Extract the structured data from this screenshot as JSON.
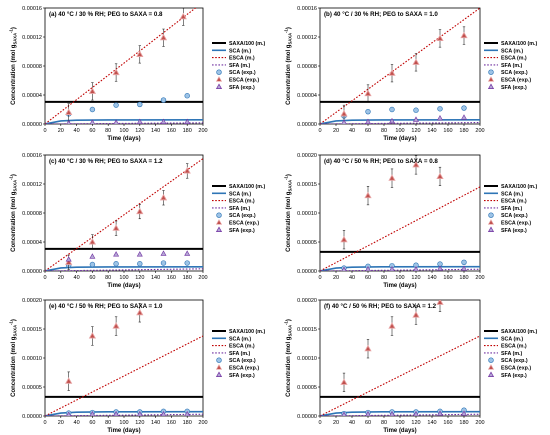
{
  "x_ticks": [
    "0",
    "20",
    "40",
    "60",
    "80",
    "100",
    "120",
    "140",
    "160",
    "180",
    "200"
  ],
  "x_label": "Time (days)",
  "y_label": "Concentration (mol g",
  "y_label_sub": "SAXA",
  "y_label_sup": "-1",
  "y_label_end": ")",
  "legend": {
    "saxa_m": "SAXA/100 (m.)",
    "sca_m": "SCA (m.)",
    "esca_m": "ESCA (m.)",
    "sfa_m": "SFA (m.)",
    "sca_e": "SCA (exp.)",
    "esca_e": "ESCA (exp.)",
    "sfa_e": "SFA (exp.)"
  },
  "colors": {
    "saxa": "#000000",
    "sca": "#2e75b6",
    "esca": "#c00000",
    "sfa": "#7030a0",
    "sca_fill": "#9dc3e6",
    "esca_fill": "#c0504d",
    "sfa_fill": "#b4a7d6",
    "marker_outline": "#e6a0a0"
  },
  "chart_data": [
    {
      "type": "scatter",
      "title": "(a)  40 °C / 30 % RH; PEG to SAXA = 0.8",
      "xlim": [
        0,
        200
      ],
      "ylim": [
        0,
        0.00016
      ],
      "yticks": [
        "0.00000",
        "0.00004",
        "0.00008",
        "0.00012",
        "0.00016"
      ],
      "series": [
        {
          "name": "SAXA/100 (m.)",
          "style": "line",
          "values": [
            [
              0,
              3.05e-05
            ],
            [
              200,
              3.05e-05
            ]
          ]
        },
        {
          "name": "SCA (m.)",
          "style": "line",
          "values": [
            [
              0,
              0
            ],
            [
              20,
              4.2e-06
            ],
            [
              40,
              5.2e-06
            ],
            [
              80,
              5.6e-06
            ],
            [
              200,
              5.8e-06
            ]
          ]
        },
        {
          "name": "ESCA (m.)",
          "style": "dotted",
          "values": [
            [
              0,
              0
            ],
            [
              200,
              0.000168
            ]
          ]
        },
        {
          "name": "SFA (m.)",
          "style": "dotted",
          "values": [
            [
              0,
              0
            ],
            [
              200,
              1.6e-06
            ]
          ]
        },
        {
          "name": "SCA (exp.)",
          "style": "circle",
          "values": [
            [
              30,
              1.4e-05
            ],
            [
              60,
              2e-05
            ],
            [
              90,
              2.6e-05
            ],
            [
              120,
              2.7e-05
            ],
            [
              150,
              3.3e-05
            ],
            [
              180,
              3.9e-05
            ]
          ]
        },
        {
          "name": "ESCA (exp.)",
          "style": "triangle",
          "values": [
            [
              30,
              1.6e-05
            ],
            [
              60,
              4.5e-05
            ],
            [
              90,
              7.1e-05
            ],
            [
              120,
              9.6e-05
            ],
            [
              150,
              0.000119
            ],
            [
              175,
              0.000148
            ]
          ],
          "err": 1.2e-05
        },
        {
          "name": "SFA (exp.)",
          "style": "triangle",
          "values": [
            [
              30,
              1e-06
            ],
            [
              60,
              2e-06
            ],
            [
              90,
              2e-06
            ],
            [
              120,
              3e-06
            ],
            [
              150,
              3e-06
            ],
            [
              180,
              3e-06
            ]
          ]
        }
      ]
    },
    {
      "type": "scatter",
      "title": "(b)  40 °C / 30 % RH; PEG to SAXA = 1.0",
      "xlim": [
        0,
        200
      ],
      "ylim": [
        0,
        0.00016
      ],
      "yticks": [
        "0.00000",
        "0.00004",
        "0.00008",
        "0.00012",
        "0.00016"
      ],
      "series": [
        {
          "name": "SAXA/100 (m.)",
          "style": "line",
          "values": [
            [
              0,
              3.05e-05
            ],
            [
              200,
              3.05e-05
            ]
          ]
        },
        {
          "name": "SCA (m.)",
          "style": "line",
          "values": [
            [
              0,
              0
            ],
            [
              20,
              4.2e-06
            ],
            [
              40,
              5.2e-06
            ],
            [
              80,
              5.6e-06
            ],
            [
              200,
              5.8e-06
            ]
          ]
        },
        {
          "name": "ESCA (m.)",
          "style": "dotted",
          "values": [
            [
              0,
              0
            ],
            [
              200,
              0.00016
            ]
          ]
        },
        {
          "name": "SFA (m.)",
          "style": "dotted",
          "values": [
            [
              0,
              0
            ],
            [
              200,
              2e-06
            ]
          ]
        },
        {
          "name": "SCA (exp.)",
          "style": "circle",
          "values": [
            [
              30,
              1.1e-05
            ],
            [
              60,
              1.7e-05
            ],
            [
              90,
              2e-05
            ],
            [
              120,
              1.9e-05
            ],
            [
              150,
              2.1e-05
            ],
            [
              180,
              2.2e-05
            ]
          ]
        },
        {
          "name": "ESCA (exp.)",
          "style": "triangle",
          "values": [
            [
              30,
              1.4e-05
            ],
            [
              60,
              4.2e-05
            ],
            [
              90,
              7e-05
            ],
            [
              120,
              8.5e-05
            ],
            [
              150,
              0.000118
            ],
            [
              180,
              0.000122
            ]
          ],
          "err": 1.2e-05
        },
        {
          "name": "SFA (exp.)",
          "style": "triangle",
          "values": [
            [
              30,
              2e-06
            ],
            [
              60,
              3e-06
            ],
            [
              90,
              4e-06
            ],
            [
              120,
              6e-06
            ],
            [
              150,
              8e-06
            ],
            [
              180,
              9e-06
            ]
          ]
        }
      ]
    },
    {
      "type": "scatter",
      "title": "(c)  40 °C / 30 % RH; PEG to SAXA = 1.2",
      "xlim": [
        0,
        200
      ],
      "ylim": [
        0,
        0.00016
      ],
      "yticks": [
        "0.00000",
        "0.00004",
        "0.00008",
        "0.00012",
        "0.00016"
      ],
      "series": [
        {
          "name": "SAXA/100 (m.)",
          "style": "line",
          "values": [
            [
              0,
              3.05e-05
            ],
            [
              200,
              3.05e-05
            ]
          ]
        },
        {
          "name": "SCA (m.)",
          "style": "line",
          "values": [
            [
              0,
              0
            ],
            [
              20,
              4.2e-06
            ],
            [
              40,
              5.2e-06
            ],
            [
              80,
              5.6e-06
            ],
            [
              200,
              5.8e-06
            ]
          ]
        },
        {
          "name": "ESCA (m.)",
          "style": "dotted",
          "values": [
            [
              0,
              0
            ],
            [
              200,
              0.000155
            ]
          ]
        },
        {
          "name": "SFA (m.)",
          "style": "dotted",
          "values": [
            [
              0,
              0
            ],
            [
              200,
              3e-06
            ]
          ]
        },
        {
          "name": "SCA (exp.)",
          "style": "circle",
          "values": [
            [
              30,
              8e-06
            ],
            [
              60,
              9e-06
            ],
            [
              90,
              1e-05
            ],
            [
              120,
              1e-05
            ],
            [
              150,
              1.1e-05
            ],
            [
              180,
              1.1e-05
            ]
          ]
        },
        {
          "name": "ESCA (exp.)",
          "style": "triangle",
          "values": [
            [
              30,
              1.2e-05
            ],
            [
              60,
              4e-05
            ],
            [
              90,
              5.9e-05
            ],
            [
              120,
              8.2e-05
            ],
            [
              150,
              0.000101
            ],
            [
              180,
              0.000138
            ]
          ],
          "err": 1e-05
        },
        {
          "name": "SFA (exp.)",
          "style": "triangle",
          "values": [
            [
              30,
              1.6e-05
            ],
            [
              60,
              2e-05
            ],
            [
              90,
              2.3e-05
            ],
            [
              120,
              2.3e-05
            ],
            [
              150,
              2.4e-05
            ],
            [
              180,
              2.4e-05
            ]
          ]
        }
      ]
    },
    {
      "type": "scatter",
      "title": "(d)  40 °C / 50 % RH; PEG to SAXA = 0.8",
      "xlim": [
        0,
        200
      ],
      "ylim": [
        0,
        0.0002
      ],
      "yticks": [
        "0.00000",
        "0.00005",
        "0.00010",
        "0.00015",
        "0.00020"
      ],
      "series": [
        {
          "name": "SAXA/100 (m.)",
          "style": "line",
          "values": [
            [
              0,
              3.3e-05
            ],
            [
              200,
              3.3e-05
            ]
          ]
        },
        {
          "name": "SCA (m.)",
          "style": "line",
          "values": [
            [
              0,
              0
            ],
            [
              20,
              5e-06
            ],
            [
              40,
              6.5e-06
            ],
            [
              80,
              7.2e-06
            ],
            [
              200,
              7.5e-06
            ]
          ]
        },
        {
          "name": "ESCA (m.)",
          "style": "dotted",
          "values": [
            [
              0,
              0
            ],
            [
              200,
              0.000145
            ]
          ]
        },
        {
          "name": "SFA (m.)",
          "style": "dotted",
          "values": [
            [
              0,
              0
            ],
            [
              200,
              3e-06
            ]
          ]
        },
        {
          "name": "SCA (exp.)",
          "style": "circle",
          "values": [
            [
              30,
              5e-06
            ],
            [
              60,
              8e-06
            ],
            [
              90,
              9e-06
            ],
            [
              120,
              1e-05
            ],
            [
              150,
              1.2e-05
            ],
            [
              180,
              1.5e-05
            ]
          ]
        },
        {
          "name": "ESCA (exp.)",
          "style": "triangle",
          "values": [
            [
              30,
              5.4e-05
            ],
            [
              60,
              0.00013
            ],
            [
              90,
              0.00016
            ],
            [
              120,
              0.000183
            ],
            [
              150,
              0.000163
            ]
          ],
          "err": 1.6e-05
        },
        {
          "name": "SFA (exp.)",
          "style": "triangle",
          "values": [
            [
              30,
              2e-06
            ],
            [
              60,
              3e-06
            ],
            [
              90,
              3e-06
            ],
            [
              120,
              3e-06
            ],
            [
              150,
              4e-06
            ],
            [
              180,
              4e-06
            ]
          ]
        }
      ]
    },
    {
      "type": "scatter",
      "title": "(e)  40 °C / 50 % RH; PEG to SAXA = 1.0",
      "xlim": [
        0,
        200
      ],
      "ylim": [
        0,
        0.0002
      ],
      "yticks": [
        "0.00000",
        "0.00005",
        "0.00010",
        "0.00015",
        "0.00020"
      ],
      "series": [
        {
          "name": "SAXA/100 (m.)",
          "style": "line",
          "values": [
            [
              0,
              3.3e-05
            ],
            [
              200,
              3.3e-05
            ]
          ]
        },
        {
          "name": "SCA (m.)",
          "style": "line",
          "values": [
            [
              0,
              0
            ],
            [
              20,
              5e-06
            ],
            [
              40,
              6.5e-06
            ],
            [
              80,
              7.2e-06
            ],
            [
              200,
              7.5e-06
            ]
          ]
        },
        {
          "name": "ESCA (m.)",
          "style": "dotted",
          "values": [
            [
              0,
              0
            ],
            [
              200,
              0.000138
            ]
          ]
        },
        {
          "name": "SFA (m.)",
          "style": "dotted",
          "values": [
            [
              0,
              0
            ],
            [
              200,
              3e-06
            ]
          ]
        },
        {
          "name": "SCA (exp.)",
          "style": "circle",
          "values": [
            [
              30,
              5e-06
            ],
            [
              60,
              6e-06
            ],
            [
              90,
              7e-06
            ],
            [
              120,
              7e-06
            ],
            [
              150,
              8e-06
            ],
            [
              180,
              8e-06
            ]
          ]
        },
        {
          "name": "ESCA (exp.)",
          "style": "triangle",
          "values": [
            [
              30,
              6e-05
            ],
            [
              60,
              0.000138
            ],
            [
              90,
              0.000155
            ],
            [
              120,
              0.000178
            ]
          ],
          "err": 1.6e-05
        },
        {
          "name": "SFA (exp.)",
          "style": "triangle",
          "values": [
            [
              30,
              2e-06
            ],
            [
              60,
              3e-06
            ],
            [
              90,
              3e-06
            ],
            [
              120,
              3e-06
            ],
            [
              150,
              3e-06
            ],
            [
              180,
              3e-06
            ]
          ]
        }
      ]
    },
    {
      "type": "scatter",
      "title": "(f)  40 °C / 50 % RH; PEG to SAXA = 1.2",
      "xlim": [
        0,
        200
      ],
      "ylim": [
        0,
        0.0002
      ],
      "yticks": [
        "0.00000",
        "0.00005",
        "0.00010",
        "0.00015",
        "0.00020"
      ],
      "series": [
        {
          "name": "SAXA/100 (m.)",
          "style": "line",
          "values": [
            [
              0,
              3.3e-05
            ],
            [
              200,
              3.3e-05
            ]
          ]
        },
        {
          "name": "SCA (m.)",
          "style": "line",
          "values": [
            [
              0,
              0
            ],
            [
              20,
              5e-06
            ],
            [
              40,
              6.5e-06
            ],
            [
              80,
              7.2e-06
            ],
            [
              200,
              7.5e-06
            ]
          ]
        },
        {
          "name": "ESCA (m.)",
          "style": "dotted",
          "values": [
            [
              0,
              0
            ],
            [
              200,
              0.000138
            ]
          ]
        },
        {
          "name": "SFA (m.)",
          "style": "dotted",
          "values": [
            [
              0,
              0
            ],
            [
              200,
              3e-06
            ]
          ]
        },
        {
          "name": "SCA (exp.)",
          "style": "circle",
          "values": [
            [
              30,
              4e-06
            ],
            [
              60,
              6e-06
            ],
            [
              90,
              7e-06
            ],
            [
              120,
              7e-06
            ],
            [
              150,
              8e-06
            ],
            [
              180,
              1e-05
            ]
          ]
        },
        {
          "name": "ESCA (exp.)",
          "style": "triangle",
          "values": [
            [
              30,
              5.8e-05
            ],
            [
              60,
              0.000116
            ],
            [
              90,
              0.000155
            ],
            [
              120,
              0.000174
            ],
            [
              150,
              0.000196
            ]
          ],
          "err": 1.6e-05
        },
        {
          "name": "SFA (exp.)",
          "style": "triangle",
          "values": [
            [
              30,
              2e-06
            ],
            [
              60,
              3e-06
            ],
            [
              90,
              3e-06
            ],
            [
              120,
              3e-06
            ],
            [
              150,
              4e-06
            ],
            [
              180,
              4e-06
            ]
          ]
        }
      ]
    }
  ]
}
